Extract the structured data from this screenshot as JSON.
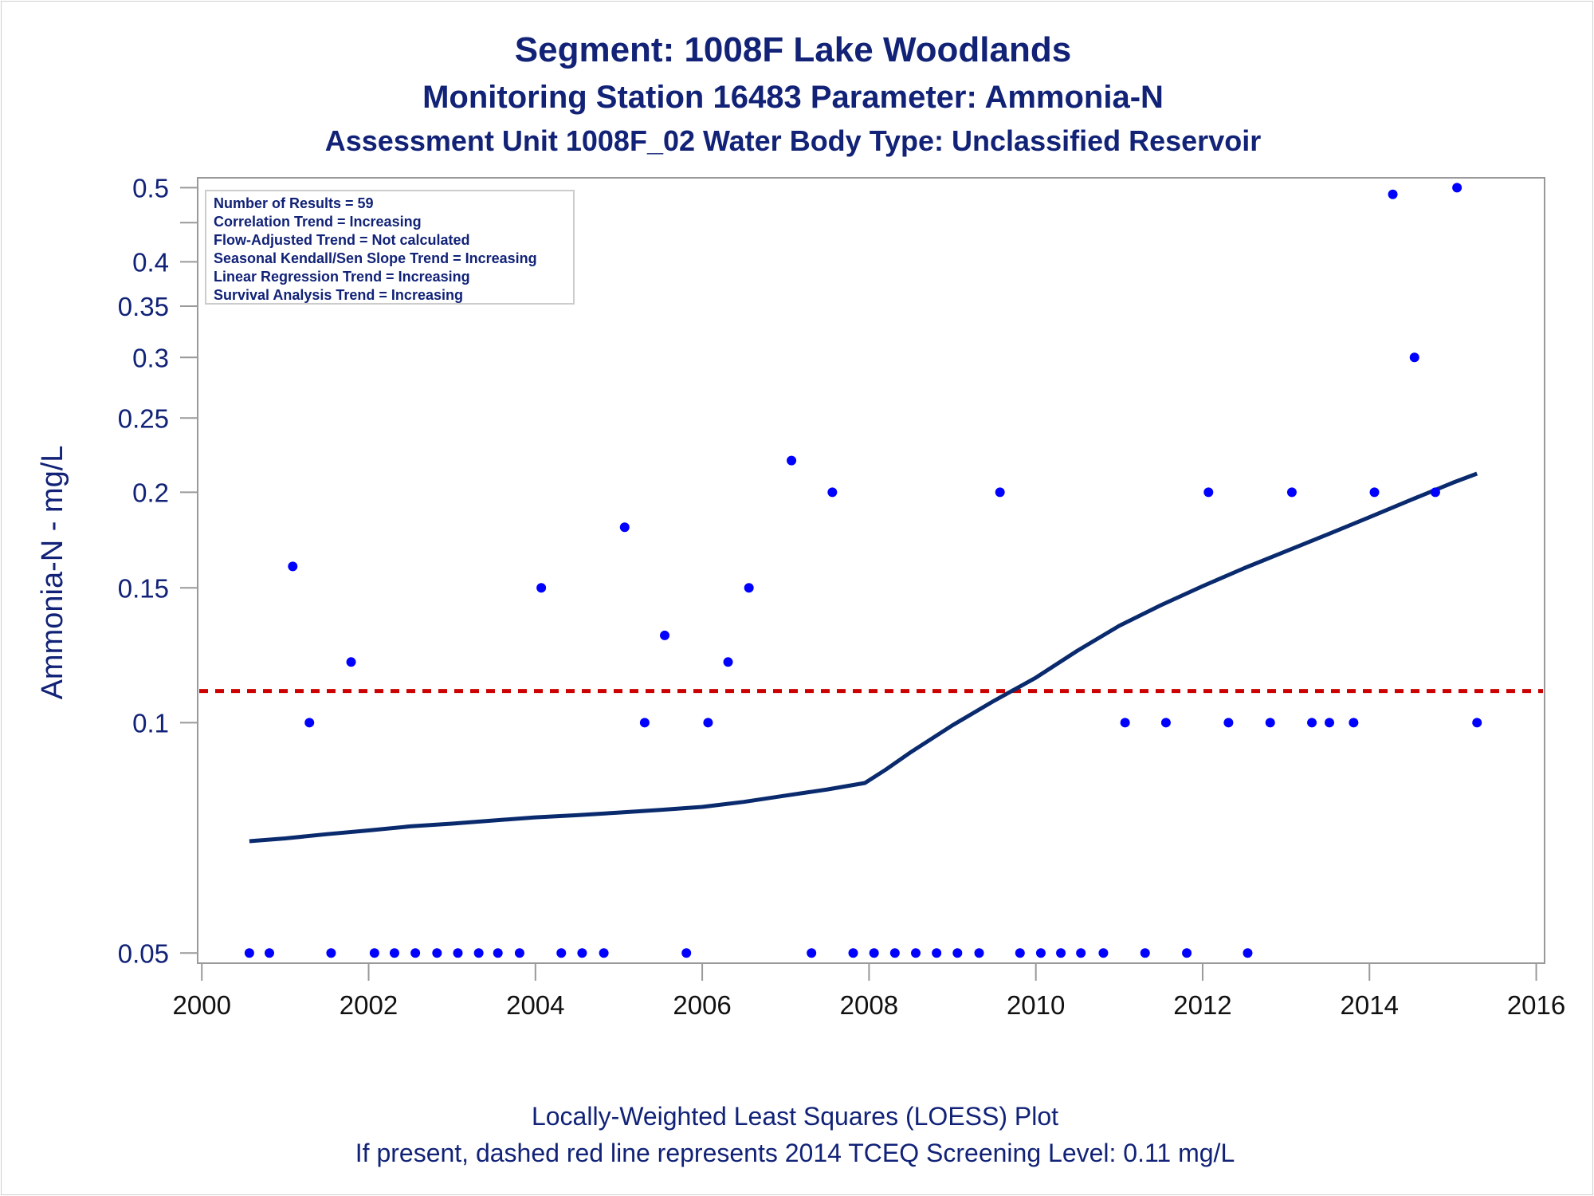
{
  "header": {
    "title": "Segment: 1008F  Lake Woodlands",
    "subtitle1": "Monitoring Station 16483 Parameter: Ammonia-N",
    "subtitle2": "Assessment Unit 1008F_02   Water Body Type: Unclassified Reservoir"
  },
  "footer": {
    "line1": "Locally-Weighted Least Squares (LOESS) Plot",
    "line2": "If present, dashed red line represents 2014 TCEQ Screening Level: 0.11 mg/L"
  },
  "colors": {
    "text": "#112277",
    "points": "#0000ff",
    "loess": "#0a2a6e",
    "screening": "#cc0000",
    "axis": "#999999"
  },
  "chart_data": {
    "type": "scatter",
    "ylabel": "Ammonia-N - mg/L",
    "xlabel": "",
    "y_scale": "log",
    "ylim": [
      0.0485,
      0.515
    ],
    "xlim": [
      1999.95,
      2016.1
    ],
    "y_ticks": [
      {
        "v": 0.5,
        "label": "0.5"
      },
      {
        "v": 0.45,
        "label": ""
      },
      {
        "v": 0.4,
        "label": "0.4"
      },
      {
        "v": 0.35,
        "label": "0.35"
      },
      {
        "v": 0.3,
        "label": "0.3"
      },
      {
        "v": 0.25,
        "label": "0.25"
      },
      {
        "v": 0.2,
        "label": "0.2"
      },
      {
        "v": 0.15,
        "label": "0.15"
      },
      {
        "v": 0.1,
        "label": "0.1"
      },
      {
        "v": 0.05,
        "label": "0.05"
      }
    ],
    "x_ticks": [
      {
        "v": 2000,
        "label": "2000"
      },
      {
        "v": 2002,
        "label": "2002"
      },
      {
        "v": 2004,
        "label": "2004"
      },
      {
        "v": 2006,
        "label": "2006"
      },
      {
        "v": 2008,
        "label": "2008"
      },
      {
        "v": 2010,
        "label": "2010"
      },
      {
        "v": 2012,
        "label": "2012"
      },
      {
        "v": 2014,
        "label": "2014"
      },
      {
        "v": 2016,
        "label": "2016"
      }
    ],
    "grid": false,
    "legend": "none",
    "stats_box": {
      "position": "top-left",
      "lines": [
        "Number of Results = 59",
        "Correlation Trend = Increasing",
        "Flow-Adjusted Trend = Not calculated",
        "Seasonal Kendall/Sen Slope Trend = Increasing",
        "Linear Regression Trend = Increasing",
        "Survival Analysis Trend = Increasing"
      ]
    },
    "screening_level": 0.11,
    "points": [
      {
        "x": 2000.57,
        "y": 0.05
      },
      {
        "x": 2000.81,
        "y": 0.05
      },
      {
        "x": 2001.09,
        "y": 0.16
      },
      {
        "x": 2001.29,
        "y": 0.1
      },
      {
        "x": 2001.55,
        "y": 0.05
      },
      {
        "x": 2001.79,
        "y": 0.12
      },
      {
        "x": 2002.07,
        "y": 0.05
      },
      {
        "x": 2002.31,
        "y": 0.05
      },
      {
        "x": 2002.56,
        "y": 0.05
      },
      {
        "x": 2002.82,
        "y": 0.05
      },
      {
        "x": 2003.07,
        "y": 0.05
      },
      {
        "x": 2003.32,
        "y": 0.05
      },
      {
        "x": 2003.55,
        "y": 0.05
      },
      {
        "x": 2003.81,
        "y": 0.05
      },
      {
        "x": 2004.07,
        "y": 0.15
      },
      {
        "x": 2004.31,
        "y": 0.05
      },
      {
        "x": 2004.56,
        "y": 0.05
      },
      {
        "x": 2004.82,
        "y": 0.05
      },
      {
        "x": 2005.07,
        "y": 0.18
      },
      {
        "x": 2005.31,
        "y": 0.1
      },
      {
        "x": 2005.55,
        "y": 0.13
      },
      {
        "x": 2005.81,
        "y": 0.05
      },
      {
        "x": 2006.07,
        "y": 0.1
      },
      {
        "x": 2006.31,
        "y": 0.12
      },
      {
        "x": 2006.56,
        "y": 0.15
      },
      {
        "x": 2007.07,
        "y": 0.22
      },
      {
        "x": 2007.31,
        "y": 0.05
      },
      {
        "x": 2007.56,
        "y": 0.2
      },
      {
        "x": 2007.81,
        "y": 0.05
      },
      {
        "x": 2008.06,
        "y": 0.05
      },
      {
        "x": 2008.31,
        "y": 0.05
      },
      {
        "x": 2008.56,
        "y": 0.05
      },
      {
        "x": 2008.81,
        "y": 0.05
      },
      {
        "x": 2009.06,
        "y": 0.05
      },
      {
        "x": 2009.32,
        "y": 0.05
      },
      {
        "x": 2009.57,
        "y": 0.2
      },
      {
        "x": 2009.81,
        "y": 0.05
      },
      {
        "x": 2010.06,
        "y": 0.05
      },
      {
        "x": 2010.3,
        "y": 0.05
      },
      {
        "x": 2010.54,
        "y": 0.05
      },
      {
        "x": 2010.81,
        "y": 0.05
      },
      {
        "x": 2011.07,
        "y": 0.1
      },
      {
        "x": 2011.31,
        "y": 0.05
      },
      {
        "x": 2011.56,
        "y": 0.1
      },
      {
        "x": 2011.81,
        "y": 0.05
      },
      {
        "x": 2012.07,
        "y": 0.2
      },
      {
        "x": 2012.31,
        "y": 0.1
      },
      {
        "x": 2012.54,
        "y": 0.05
      },
      {
        "x": 2012.81,
        "y": 0.1
      },
      {
        "x": 2013.07,
        "y": 0.2
      },
      {
        "x": 2013.31,
        "y": 0.1
      },
      {
        "x": 2013.52,
        "y": 0.1
      },
      {
        "x": 2013.81,
        "y": 0.1
      },
      {
        "x": 2014.06,
        "y": 0.2
      },
      {
        "x": 2014.28,
        "y": 0.49
      },
      {
        "x": 2014.54,
        "y": 0.3
      },
      {
        "x": 2014.79,
        "y": 0.2
      },
      {
        "x": 2015.05,
        "y": 0.5
      },
      {
        "x": 2015.29,
        "y": 0.1
      }
    ],
    "loess": [
      {
        "x": 2000.57,
        "y": 0.07
      },
      {
        "x": 2001.0,
        "y": 0.0706
      },
      {
        "x": 2001.5,
        "y": 0.0715
      },
      {
        "x": 2002.0,
        "y": 0.0723
      },
      {
        "x": 2002.5,
        "y": 0.0732
      },
      {
        "x": 2003.0,
        "y": 0.0738
      },
      {
        "x": 2003.5,
        "y": 0.0745
      },
      {
        "x": 2004.0,
        "y": 0.0752
      },
      {
        "x": 2004.5,
        "y": 0.0757
      },
      {
        "x": 2005.0,
        "y": 0.0763
      },
      {
        "x": 2005.5,
        "y": 0.0769
      },
      {
        "x": 2006.0,
        "y": 0.0776
      },
      {
        "x": 2006.5,
        "y": 0.0788
      },
      {
        "x": 2007.0,
        "y": 0.0803
      },
      {
        "x": 2007.5,
        "y": 0.0818
      },
      {
        "x": 2007.95,
        "y": 0.0834
      },
      {
        "x": 2008.2,
        "y": 0.0868
      },
      {
        "x": 2008.5,
        "y": 0.0915
      },
      {
        "x": 2009.0,
        "y": 0.0992
      },
      {
        "x": 2009.5,
        "y": 0.1068
      },
      {
        "x": 2010.0,
        "y": 0.1145
      },
      {
        "x": 2010.5,
        "y": 0.1242
      },
      {
        "x": 2011.0,
        "y": 0.1338
      },
      {
        "x": 2011.5,
        "y": 0.1424
      },
      {
        "x": 2012.0,
        "y": 0.1508
      },
      {
        "x": 2012.5,
        "y": 0.1592
      },
      {
        "x": 2013.0,
        "y": 0.1675
      },
      {
        "x": 2013.5,
        "y": 0.1762
      },
      {
        "x": 2014.0,
        "y": 0.1855
      },
      {
        "x": 2014.5,
        "y": 0.1955
      },
      {
        "x": 2015.0,
        "y": 0.2058
      },
      {
        "x": 2015.29,
        "y": 0.2115
      }
    ]
  }
}
